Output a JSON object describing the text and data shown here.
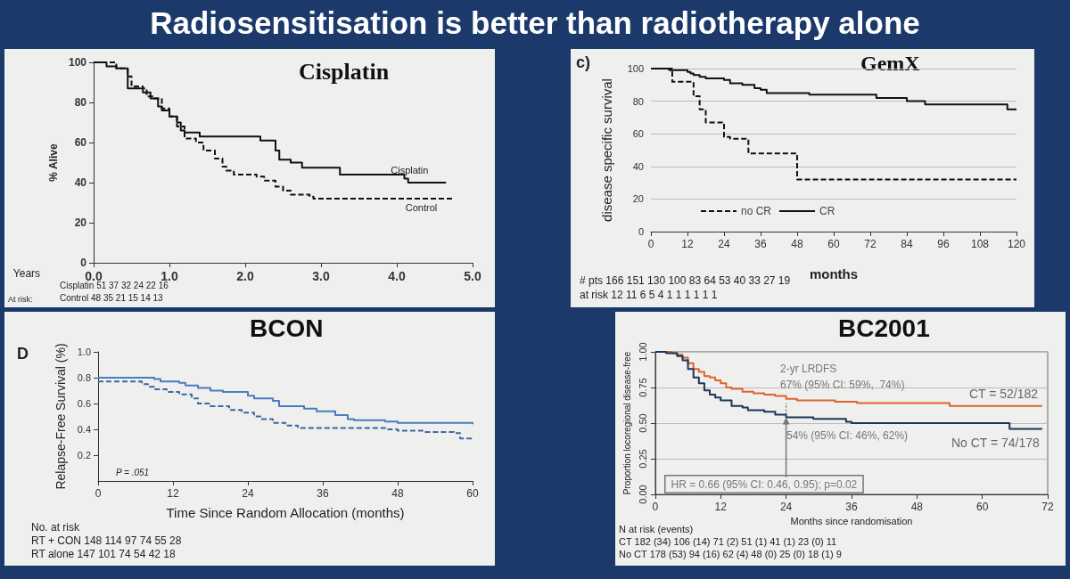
{
  "chart_data": [
    {
      "type": "other",
      "title": "Radiosensitisation is better than radiotherapy alone"
    },
    {
      "type": "step",
      "title": "Cisplatin",
      "xlabel": "Years",
      "ylabel": "% Alive",
      "xlim": [
        0,
        5
      ],
      "xticks": [
        {
          "value": 0,
          "label": "0.0"
        },
        {
          "value": 1,
          "label": "1.0"
        },
        {
          "value": 2,
          "label": "2.0"
        },
        {
          "value": 3,
          "label": "3.0"
        },
        {
          "value": 4,
          "label": "4.0"
        },
        {
          "value": 5,
          "label": "5.0"
        }
      ],
      "ylim": [
        0,
        100
      ],
      "yticks": [
        0,
        20,
        40,
        60,
        80,
        100
      ],
      "grid": false,
      "legend": false,
      "marker": "none",
      "series": [
        {
          "name": "Cisplatin",
          "color": "#111111",
          "line_style": "solid",
          "x": [
            0,
            0.17,
            0.3,
            0.45,
            0.65,
            0.75,
            0.85,
            0.9,
            1.0,
            1.1,
            1.15,
            1.2,
            1.4,
            2.2,
            2.4,
            2.45,
            2.6,
            2.75,
            3.25,
            4.1,
            4.15,
            4.65
          ],
          "values": [
            100,
            98,
            97,
            87,
            85,
            82,
            78,
            76,
            73,
            70,
            66,
            65,
            63,
            61,
            56,
            51.5,
            50,
            47.5,
            44,
            42,
            40,
            40
          ]
        },
        {
          "name": "Control",
          "color": "#111111",
          "line_style": "dashed",
          "x": [
            0,
            0.3,
            0.45,
            0.5,
            0.65,
            0.7,
            0.8,
            0.9,
            1.0,
            1.1,
            1.2,
            1.35,
            1.45,
            1.6,
            1.7,
            1.75,
            1.85,
            2.15,
            2.25,
            2.4,
            2.5,
            2.6,
            2.85,
            2.9,
            4.75
          ],
          "values": [
            100,
            97,
            93,
            88,
            87,
            83,
            82,
            77,
            73,
            68,
            62,
            60,
            56,
            52,
            48,
            46,
            44,
            43,
            41,
            38,
            36,
            34,
            33,
            32,
            32
          ]
        }
      ],
      "annotations": [
        "At risk:",
        "Cisplatin 51 37 32 24 22 16",
        "Control 48 35 21 15 14 13"
      ]
    },
    {
      "type": "step",
      "title": "GemX",
      "xlabel": "months",
      "ylabel": "disease specific survival",
      "xlim": [
        0,
        120
      ],
      "xticks": [
        0,
        12,
        24,
        36,
        48,
        60,
        72,
        84,
        96,
        108,
        120
      ],
      "ylim": [
        0,
        100
      ],
      "yticks": [
        0,
        20,
        40,
        60,
        80,
        100
      ],
      "grid": "y",
      "legend": "bottom left",
      "marker": "none",
      "series": [
        {
          "name": "no CR",
          "color": "#111111",
          "line_style": "dashed",
          "x": [
            0,
            7,
            14,
            16,
            18,
            24,
            26,
            32,
            48,
            120
          ],
          "values": [
            100,
            92,
            83,
            75,
            67,
            58,
            57,
            48,
            32,
            32
          ]
        },
        {
          "name": "CR",
          "color": "#111111",
          "line_style": "solid",
          "x": [
            0,
            6,
            12,
            13,
            14,
            16,
            18,
            24,
            26,
            30,
            34,
            36,
            38,
            52,
            74,
            84,
            90,
            117,
            120
          ],
          "values": [
            100,
            99,
            98,
            97,
            96,
            95,
            94,
            93,
            91,
            90,
            88,
            87,
            85,
            84,
            82,
            80,
            78,
            75,
            75
          ]
        }
      ],
      "annotations": [
        "c)",
        "# pts 166 151 130 100 83 64 53 40 33 27 19",
        "at risk 12 11 6 5 4 1 1 1 1 1 1"
      ]
    },
    {
      "type": "step",
      "title": "BCON",
      "xlabel": "Time Since Random Allocation (months)",
      "ylabel": "Relapse-Free Survival (%)",
      "xlim": [
        0,
        60
      ],
      "xticks": [
        0,
        12,
        24,
        36,
        48,
        60
      ],
      "ylim": [
        0,
        1
      ],
      "yticks": [
        {
          "value": 0.2,
          "label": "0.2"
        },
        {
          "value": 0.4,
          "label": "0.4"
        },
        {
          "value": 0.6,
          "label": "0.6"
        },
        {
          "value": 0.8,
          "label": "0.8"
        },
        {
          "value": 1,
          "label": "1.0"
        }
      ],
      "grid": false,
      "legend": false,
      "marker": "none",
      "series": [
        {
          "color": "#4a7cc0",
          "line_style": "solid",
          "x": [
            0,
            9,
            10,
            13,
            14,
            16,
            18,
            20,
            24,
            25,
            28,
            29,
            33,
            35,
            38,
            40,
            41,
            46,
            48,
            60
          ],
          "values": [
            0.8,
            0.79,
            0.77,
            0.76,
            0.74,
            0.72,
            0.7,
            0.69,
            0.66,
            0.64,
            0.62,
            0.58,
            0.56,
            0.54,
            0.51,
            0.48,
            0.47,
            0.46,
            0.45,
            0.44
          ]
        },
        {
          "color": "#3a68a8",
          "line_style": "dashed",
          "x": [
            0,
            7,
            8,
            9,
            11,
            13,
            15,
            16,
            18,
            21,
            23,
            25,
            26,
            28,
            30,
            32,
            46,
            48,
            52,
            57,
            58,
            60
          ],
          "values": [
            0.77,
            0.75,
            0.73,
            0.71,
            0.69,
            0.67,
            0.64,
            0.6,
            0.58,
            0.55,
            0.53,
            0.5,
            0.48,
            0.45,
            0.43,
            0.41,
            0.4,
            0.39,
            0.38,
            0.37,
            0.33,
            0.33
          ]
        }
      ],
      "annotations": [
        "D",
        "P = .051",
        "No. at risk",
        "RT + CON 148 114 97 74 55 28",
        "RT alone 147 101 74 54 42 18"
      ]
    },
    {
      "type": "step",
      "title": "BC2001",
      "xlabel": "Months since randomisation",
      "ylabel": "Proportion locoregional disease-free",
      "xlim": [
        0,
        72
      ],
      "xticks": [
        0,
        12,
        24,
        36,
        48,
        60,
        72
      ],
      "ylim": [
        0,
        1
      ],
      "yticks": [
        {
          "value": 0,
          "label": "0.00"
        },
        {
          "value": 0.25,
          "label": "0.25"
        },
        {
          "value": 0.5,
          "label": "0.50"
        },
        {
          "value": 0.75,
          "label": "0.75"
        },
        {
          "value": 1,
          "label": "1.00"
        }
      ],
      "grid": "y",
      "legend": false,
      "marker": "none",
      "series": [
        {
          "name": "CT = 52/182",
          "color": "#e0642c",
          "line_style": "solid",
          "x": [
            0,
            3,
            4,
            5,
            6,
            7,
            8,
            9,
            10,
            11,
            12,
            13,
            14,
            16,
            18,
            20,
            22,
            24,
            26,
            33,
            37,
            54,
            71
          ],
          "values": [
            1,
            0.99,
            0.98,
            0.96,
            0.92,
            0.88,
            0.86,
            0.83,
            0.82,
            0.8,
            0.78,
            0.75,
            0.74,
            0.72,
            0.71,
            0.7,
            0.69,
            0.67,
            0.66,
            0.65,
            0.64,
            0.62,
            0.62
          ]
        },
        {
          "name": "No CT = 74/178",
          "color": "#1e3558",
          "line_style": "solid",
          "x": [
            0,
            2,
            4,
            5,
            6,
            7,
            8,
            9,
            10,
            11,
            12,
            14,
            16,
            17,
            20,
            22,
            24,
            29,
            35,
            36,
            65,
            71
          ],
          "values": [
            1,
            0.99,
            0.97,
            0.94,
            0.88,
            0.82,
            0.78,
            0.73,
            0.7,
            0.68,
            0.66,
            0.62,
            0.61,
            0.59,
            0.58,
            0.56,
            0.54,
            0.53,
            0.51,
            0.5,
            0.46,
            0.46
          ]
        }
      ],
      "annotations": [
        "2-yr LRDFS",
        "67% (95% CI: 59%,  74%)",
        "54% (95% CI: 46%, 62%)",
        {
          "text": "HR = 0.66 (95% CI: 0.46, 0.95); p=0.02",
          "x": 24,
          "y": 0.54
        },
        "N at risk (events)",
        "CT 182 (34) 106 (14) 71 (2) 51 (1) 41 (1) 23 (0) 11",
        "No CT 178 (53) 94 (16) 62 (4) 48 (0) 25 (0) 18 (1) 9"
      ]
    }
  ]
}
